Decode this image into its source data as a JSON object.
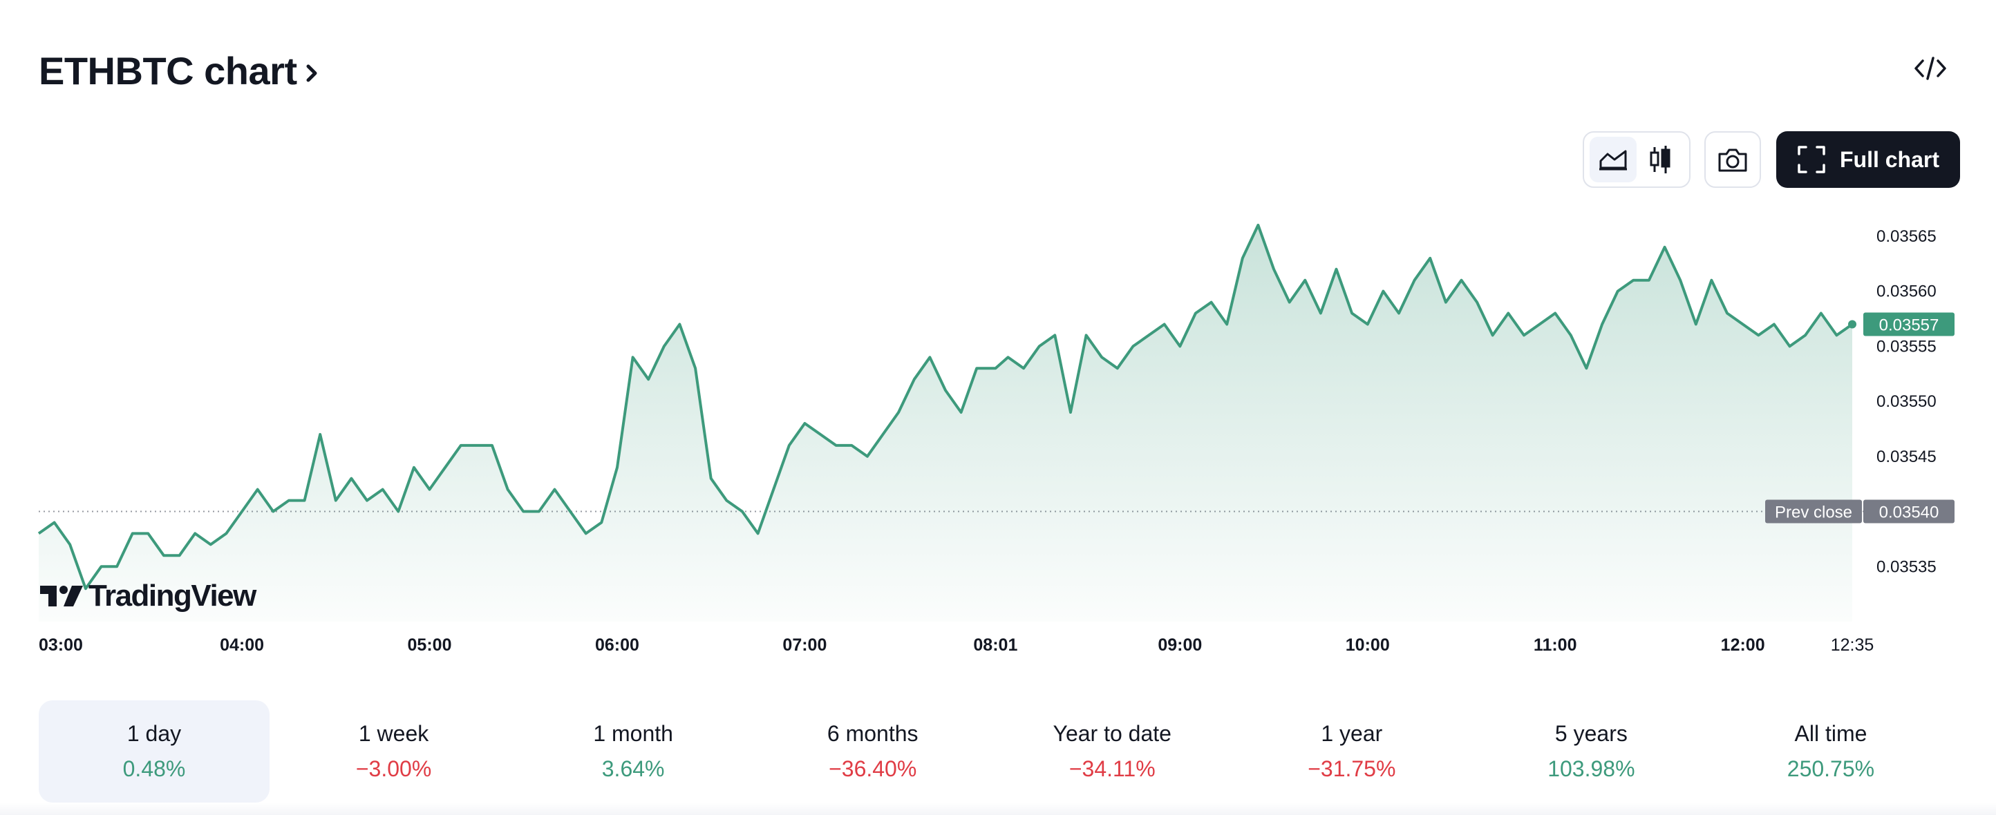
{
  "header": {
    "title": "ETHBTC chart"
  },
  "toolbar": {
    "line_chart_icon": "area-chart-icon",
    "candles_icon": "candlestick-icon",
    "snapshot_icon": "camera-icon",
    "full_chart_label": "Full chart",
    "embed_icon": "code-icon"
  },
  "watermark": {
    "text": "TradingView"
  },
  "colors": {
    "line": "#3d9a7c",
    "badge": "#3d9a7c",
    "prev_close_badge": "#787b86",
    "negative": "#e03c45",
    "button_dark": "#131722"
  },
  "chart_data": {
    "type": "area",
    "symbol": "ETHBTC",
    "ylim": [
      0.0353,
      0.03567
    ],
    "y_ticks": [
      "0.03565",
      "0.03560",
      "0.03555",
      "0.03550",
      "0.03545",
      "0.03540",
      "0.03535"
    ],
    "x_ticks": [
      "03:00",
      "04:00",
      "05:00",
      "06:00",
      "07:00",
      "08:01",
      "09:00",
      "10:00",
      "11:00",
      "12:00",
      "12:35"
    ],
    "last_price": "0.03557",
    "prev_close": {
      "label": "Prev close",
      "value": "0.03540"
    },
    "points": [
      [
        "02:55",
        0.03538
      ],
      [
        "03:00",
        0.03539
      ],
      [
        "03:05",
        0.03537
      ],
      [
        "03:10",
        0.03533
      ],
      [
        "03:15",
        0.03535
      ],
      [
        "03:20",
        0.03535
      ],
      [
        "03:25",
        0.03538
      ],
      [
        "03:30",
        0.03538
      ],
      [
        "03:35",
        0.03536
      ],
      [
        "03:40",
        0.03536
      ],
      [
        "03:45",
        0.03538
      ],
      [
        "03:50",
        0.03537
      ],
      [
        "03:55",
        0.03538
      ],
      [
        "04:00",
        0.0354
      ],
      [
        "04:05",
        0.03542
      ],
      [
        "04:10",
        0.0354
      ],
      [
        "04:15",
        0.03541
      ],
      [
        "04:20",
        0.03541
      ],
      [
        "04:25",
        0.03547
      ],
      [
        "04:30",
        0.03541
      ],
      [
        "04:35",
        0.03543
      ],
      [
        "04:40",
        0.03541
      ],
      [
        "04:45",
        0.03542
      ],
      [
        "04:50",
        0.0354
      ],
      [
        "04:55",
        0.03544
      ],
      [
        "05:00",
        0.03542
      ],
      [
        "05:05",
        0.03544
      ],
      [
        "05:10",
        0.03546
      ],
      [
        "05:15",
        0.03546
      ],
      [
        "05:20",
        0.03546
      ],
      [
        "05:25",
        0.03542
      ],
      [
        "05:30",
        0.0354
      ],
      [
        "05:35",
        0.0354
      ],
      [
        "05:40",
        0.03542
      ],
      [
        "05:45",
        0.0354
      ],
      [
        "05:50",
        0.03538
      ],
      [
        "05:55",
        0.03539
      ],
      [
        "06:00",
        0.03544
      ],
      [
        "06:05",
        0.03554
      ],
      [
        "06:10",
        0.03552
      ],
      [
        "06:15",
        0.03555
      ],
      [
        "06:20",
        0.03557
      ],
      [
        "06:25",
        0.03553
      ],
      [
        "06:30",
        0.03543
      ],
      [
        "06:35",
        0.03541
      ],
      [
        "06:40",
        0.0354
      ],
      [
        "06:45",
        0.03538
      ],
      [
        "06:50",
        0.03542
      ],
      [
        "06:55",
        0.03546
      ],
      [
        "07:00",
        0.03548
      ],
      [
        "07:05",
        0.03547
      ],
      [
        "07:10",
        0.03546
      ],
      [
        "07:15",
        0.03546
      ],
      [
        "07:20",
        0.03545
      ],
      [
        "07:25",
        0.03547
      ],
      [
        "07:30",
        0.03549
      ],
      [
        "07:35",
        0.03552
      ],
      [
        "07:40",
        0.03554
      ],
      [
        "07:45",
        0.03551
      ],
      [
        "07:50",
        0.03549
      ],
      [
        "07:55",
        0.03553
      ],
      [
        "08:01",
        0.03553
      ],
      [
        "08:05",
        0.03554
      ],
      [
        "08:10",
        0.03553
      ],
      [
        "08:15",
        0.03555
      ],
      [
        "08:20",
        0.03556
      ],
      [
        "08:25",
        0.03549
      ],
      [
        "08:30",
        0.03556
      ],
      [
        "08:35",
        0.03554
      ],
      [
        "08:40",
        0.03553
      ],
      [
        "08:45",
        0.03555
      ],
      [
        "08:50",
        0.03556
      ],
      [
        "08:55",
        0.03557
      ],
      [
        "09:00",
        0.03555
      ],
      [
        "09:05",
        0.03558
      ],
      [
        "09:10",
        0.03559
      ],
      [
        "09:15",
        0.03557
      ],
      [
        "09:20",
        0.03563
      ],
      [
        "09:25",
        0.03566
      ],
      [
        "09:30",
        0.03562
      ],
      [
        "09:35",
        0.03559
      ],
      [
        "09:40",
        0.03561
      ],
      [
        "09:45",
        0.03558
      ],
      [
        "09:50",
        0.03562
      ],
      [
        "09:55",
        0.03558
      ],
      [
        "10:00",
        0.03557
      ],
      [
        "10:05",
        0.0356
      ],
      [
        "10:10",
        0.03558
      ],
      [
        "10:15",
        0.03561
      ],
      [
        "10:20",
        0.03563
      ],
      [
        "10:25",
        0.03559
      ],
      [
        "10:30",
        0.03561
      ],
      [
        "10:35",
        0.03559
      ],
      [
        "10:40",
        0.03556
      ],
      [
        "10:45",
        0.03558
      ],
      [
        "10:50",
        0.03556
      ],
      [
        "10:55",
        0.03557
      ],
      [
        "11:00",
        0.03558
      ],
      [
        "11:05",
        0.03556
      ],
      [
        "11:10",
        0.03553
      ],
      [
        "11:15",
        0.03557
      ],
      [
        "11:20",
        0.0356
      ],
      [
        "11:25",
        0.03561
      ],
      [
        "11:30",
        0.03561
      ],
      [
        "11:35",
        0.03564
      ],
      [
        "11:40",
        0.03561
      ],
      [
        "11:45",
        0.03557
      ],
      [
        "11:50",
        0.03561
      ],
      [
        "11:55",
        0.03558
      ],
      [
        "12:00",
        0.03557
      ],
      [
        "12:05",
        0.03556
      ],
      [
        "12:10",
        0.03557
      ],
      [
        "12:15",
        0.03555
      ],
      [
        "12:20",
        0.03556
      ],
      [
        "12:25",
        0.03558
      ],
      [
        "12:30",
        0.03556
      ],
      [
        "12:35",
        0.03557
      ]
    ]
  },
  "periods": [
    {
      "label": "1 day",
      "change": "0.48%",
      "direction": "positive",
      "selected": true
    },
    {
      "label": "1 week",
      "change": "−3.00%",
      "direction": "negative",
      "selected": false
    },
    {
      "label": "1 month",
      "change": "3.64%",
      "direction": "positive",
      "selected": false
    },
    {
      "label": "6 months",
      "change": "−36.40%",
      "direction": "negative",
      "selected": false
    },
    {
      "label": "Year to date",
      "change": "−34.11%",
      "direction": "negative",
      "selected": false
    },
    {
      "label": "1 year",
      "change": "−31.75%",
      "direction": "negative",
      "selected": false
    },
    {
      "label": "5 years",
      "change": "103.98%",
      "direction": "positive",
      "selected": false
    },
    {
      "label": "All time",
      "change": "250.75%",
      "direction": "positive",
      "selected": false
    }
  ]
}
